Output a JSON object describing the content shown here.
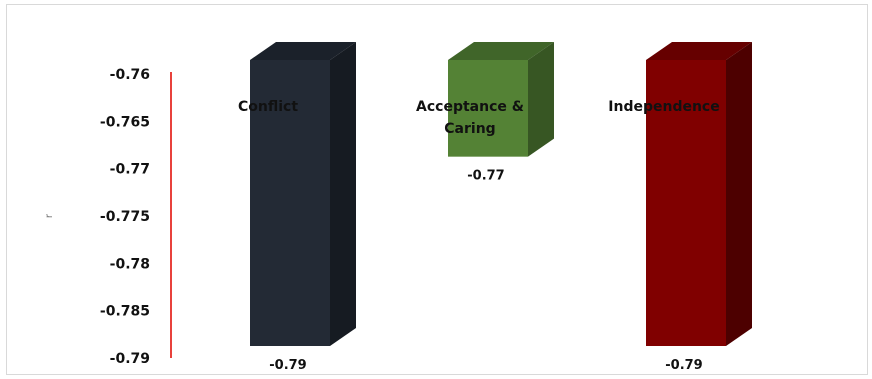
{
  "chart_data": {
    "type": "bar",
    "title": "",
    "xlabel": "",
    "ylabel": "r",
    "ylim": [
      -0.79,
      -0.76
    ],
    "yticks": [
      "-0.76",
      "-0.765",
      "-0.77",
      "-0.775",
      "-0.78",
      "-0.785",
      "-0.79"
    ],
    "tick_values": [
      -0.76,
      -0.765,
      -0.77,
      -0.775,
      -0.78,
      -0.785,
      -0.79
    ],
    "categories": [
      "Conflict",
      "Acceptance & Caring",
      "Independence"
    ],
    "category_lines": [
      [
        "Conflict"
      ],
      [
        "Acceptance &",
        "Caring"
      ],
      [
        "Independence"
      ]
    ],
    "values": [
      -0.79,
      -0.77,
      -0.79
    ],
    "data_labels": [
      "-0.79",
      "-0.77",
      "-0.79"
    ],
    "colors": [
      "#232a35",
      "#548235",
      "#800000"
    ],
    "side_colors": [
      "#161b22",
      "#375623",
      "#4d0000"
    ],
    "top_colors": [
      "#1b212a",
      "#406529",
      "#660000"
    ],
    "axis_color": "#e8413c",
    "grid": false,
    "legend": "none"
  }
}
